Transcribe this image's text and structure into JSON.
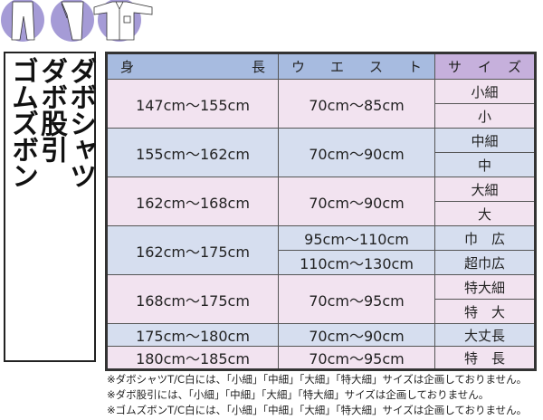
{
  "illustrations": [
    "pants-icon",
    "wrap-pants-icon",
    "shirt-icon"
  ],
  "colors": {
    "header_blue": "#a7bbe0",
    "header_purple": "#c6b0dc",
    "row_pink": "#f2e3f0",
    "row_blue": "#d6deef",
    "circle": "#a59bd6"
  },
  "products": [
    "ダボシャツ",
    "ダボ股引",
    "ゴムズボン"
  ],
  "headers": {
    "height": [
      "身",
      "長"
    ],
    "waist": [
      "ウ",
      "エ",
      "ス",
      "ト"
    ],
    "size": [
      "サ",
      "イ",
      "ズ"
    ]
  },
  "rows": [
    {
      "height": "147cm～155cm",
      "waist": [
        "70cm～85cm"
      ],
      "sizes": [
        "小細",
        "小"
      ]
    },
    {
      "height": "155cm～162cm",
      "waist": [
        "70cm～90cm"
      ],
      "sizes": [
        "中細",
        "中"
      ]
    },
    {
      "height": "162cm～168cm",
      "waist": [
        "70cm～90cm"
      ],
      "sizes": [
        "大細",
        "大"
      ]
    },
    {
      "height": "162cm～175cm",
      "waist": [
        "95cm～110cm",
        "110cm～130cm"
      ],
      "sizes": [
        "巾　広",
        "超巾広"
      ]
    },
    {
      "height": "168cm～175cm",
      "waist": [
        "70cm～95cm"
      ],
      "sizes": [
        "特大細",
        "特　大"
      ]
    },
    {
      "height": "175cm～180cm",
      "waist": [
        "70cm～90cm"
      ],
      "sizes": [
        "大丈長"
      ]
    },
    {
      "height": "180cm～185cm",
      "waist": [
        "70cm～95cm"
      ],
      "sizes": [
        "特　長"
      ]
    }
  ],
  "notes": [
    "※ダボシャツT/C白には、「小細」「中細」「大細」「特大細」サイズは企画しておりません。",
    "※ダボ股引には、「小細」「中細」「大細」「特大細」サイズは企画しておりません。",
    "※ゴムズボンT/C白には、「小細」「中細」「大細」「特大細」サイズは企画しておりません。"
  ]
}
